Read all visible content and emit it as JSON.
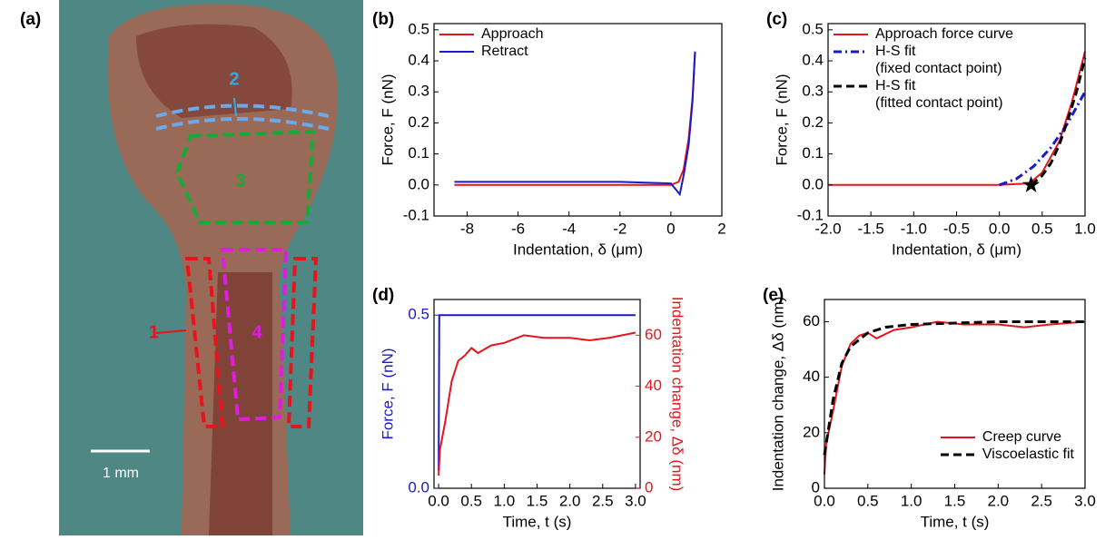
{
  "panel_a": {
    "label": "(a)",
    "regions": [
      "1",
      "2",
      "3",
      "4"
    ],
    "scale_bar": "1 mm"
  },
  "chart_data": [
    {
      "type": "line",
      "panel_label": "(b)",
      "xlabel": "Indentation, δ (μm)",
      "ylabel": "Force, F (nN)",
      "xlim": [
        -9.3,
        2
      ],
      "ylim": [
        -0.1,
        0.52
      ],
      "xticks": [
        -8,
        -6,
        -4,
        -2,
        0,
        2
      ],
      "yticks": [
        -0.1,
        {
          "value": 0,
          "label": "0.0"
        },
        0.1,
        0.2,
        0.3,
        0.4,
        0.5
      ],
      "legend": "upper left",
      "series": [
        {
          "name": "Approach",
          "color": "#e8141c",
          "dash": "solid",
          "x": [
            -8.5,
            -6,
            -4,
            -2,
            0,
            0.3,
            0.5,
            0.7,
            0.85,
            0.95
          ],
          "values": [
            0,
            0,
            0,
            0,
            0,
            0.01,
            0.05,
            0.15,
            0.28,
            0.43
          ]
        },
        {
          "name": "Retract",
          "color": "#1a1acc",
          "dash": "solid",
          "x": [
            -8.5,
            -6,
            -4,
            -2,
            0,
            0.35,
            0.5,
            0.7,
            0.85,
            0.95
          ],
          "values": [
            0.01,
            0.01,
            0.01,
            0.01,
            0.005,
            -0.03,
            0.03,
            0.13,
            0.27,
            0.43
          ]
        }
      ]
    },
    {
      "type": "line",
      "panel_label": "(c)",
      "xlabel": "Indentation, δ (μm)",
      "ylabel": "Force, F (nN)",
      "xlim": [
        -2,
        1
      ],
      "ylim": [
        -0.1,
        0.52
      ],
      "xticks": [
        {
          "value": -2,
          "label": "-2.0"
        },
        -1.5,
        {
          "value": -1,
          "label": "-1.0"
        },
        -0.5,
        {
          "value": 0,
          "label": "0.0"
        },
        0.5,
        {
          "value": 1,
          "label": "1.0"
        }
      ],
      "yticks": [
        -0.1,
        {
          "value": 0,
          "label": "0.0"
        },
        0.1,
        0.2,
        0.3,
        0.4,
        0.5
      ],
      "legend": "upper left",
      "contact_point": [
        0.37,
        0
      ],
      "series": [
        {
          "name": "Approach force curve",
          "color": "#e8141c",
          "dash": "solid",
          "x": [
            -2,
            -1.5,
            -1,
            -0.5,
            0,
            0.2,
            0.35,
            0.5,
            0.7,
            0.85,
            1
          ],
          "values": [
            0,
            0,
            0,
            0,
            0,
            0.003,
            0.005,
            0.04,
            0.14,
            0.27,
            0.43
          ]
        },
        {
          "name": "H-S fit\n(fixed contact point)",
          "color": "#1a1acc",
          "dash": "dashdot",
          "x": [
            0,
            0.2,
            0.4,
            0.6,
            0.8,
            1
          ],
          "values": [
            0,
            0.02,
            0.06,
            0.12,
            0.2,
            0.3
          ]
        },
        {
          "name": "H-S fit\n(fitted contact point)",
          "color": "#000000",
          "dash": "dashed",
          "x": [
            0.37,
            0.5,
            0.6,
            0.7,
            0.8,
            0.9,
            1
          ],
          "values": [
            0,
            0.03,
            0.07,
            0.13,
            0.21,
            0.3,
            0.41
          ]
        }
      ]
    },
    {
      "type": "line",
      "panel_label": "(d)",
      "xlabel": "Time, t (s)",
      "ylabel": "Force, F (nN)",
      "y2label": "Indentation change, Δδ (nm)",
      "xlim": [
        -0.07,
        3.07
      ],
      "ylim": [
        0,
        0.545
      ],
      "y2lim": [
        0,
        74
      ],
      "xticks": [
        {
          "value": 0,
          "label": "0.0"
        },
        0.5,
        {
          "value": 1,
          "label": "1.0"
        },
        1.5,
        {
          "value": 2,
          "label": "2.0"
        },
        2.5,
        {
          "value": 3,
          "label": "3.0"
        }
      ],
      "yticks": [
        {
          "value": 0,
          "label": "0.0"
        },
        0.5
      ],
      "y2ticks": [
        0,
        20,
        40,
        60
      ],
      "series": [
        {
          "color": "#1a1acc",
          "dash": "solid",
          "x": [
            0,
            0.01,
            0.5,
            1,
            1.5,
            2,
            2.5,
            3
          ],
          "values": [
            0.05,
            0.5,
            0.5,
            0.5,
            0.5,
            0.5,
            0.5,
            0.5
          ]
        },
        {
          "color": "#e8141c",
          "dash": "solid",
          "axis": "y2",
          "x": [
            0,
            0.02,
            0.1,
            0.2,
            0.3,
            0.4,
            0.5,
            0.6,
            0.8,
            1,
            1.3,
            1.6,
            2,
            2.3,
            2.6,
            3
          ],
          "values": [
            5,
            15,
            26,
            42,
            50,
            52,
            55,
            53,
            56,
            57,
            60,
            59,
            59,
            58,
            59,
            61
          ]
        }
      ]
    },
    {
      "type": "line",
      "panel_label": "(e)",
      "xlabel": "Time, t (s)",
      "ylabel": "Indentation change, Δδ (nm)",
      "xlim": [
        0,
        3
      ],
      "ylim": [
        0,
        68
      ],
      "xticks": [
        {
          "value": 0,
          "label": "0.0"
        },
        0.5,
        {
          "value": 1,
          "label": "1.0"
        },
        1.5,
        {
          "value": 2,
          "label": "2.0"
        },
        2.5,
        {
          "value": 3,
          "label": "3.0"
        }
      ],
      "yticks": [
        0,
        20,
        40,
        60
      ],
      "legend": "lower right",
      "series": [
        {
          "name": "Creep curve",
          "color": "#e8141c",
          "dash": "solid",
          "x": [
            0,
            0.02,
            0.1,
            0.2,
            0.3,
            0.4,
            0.5,
            0.6,
            0.8,
            1,
            1.3,
            1.6,
            2,
            2.3,
            2.6,
            3
          ],
          "values": [
            5,
            16,
            28,
            44,
            52,
            55,
            56,
            54,
            57,
            58,
            60,
            59,
            59,
            58,
            59,
            60
          ]
        },
        {
          "name": "Viscoelastic fit",
          "color": "#000000",
          "dash": "dashed",
          "x": [
            0,
            0.1,
            0.2,
            0.3,
            0.5,
            0.7,
            1,
            1.5,
            2,
            2.5,
            3
          ],
          "values": [
            12,
            32,
            45,
            51,
            56,
            58,
            59,
            59.5,
            60,
            60,
            60
          ]
        }
      ]
    }
  ]
}
